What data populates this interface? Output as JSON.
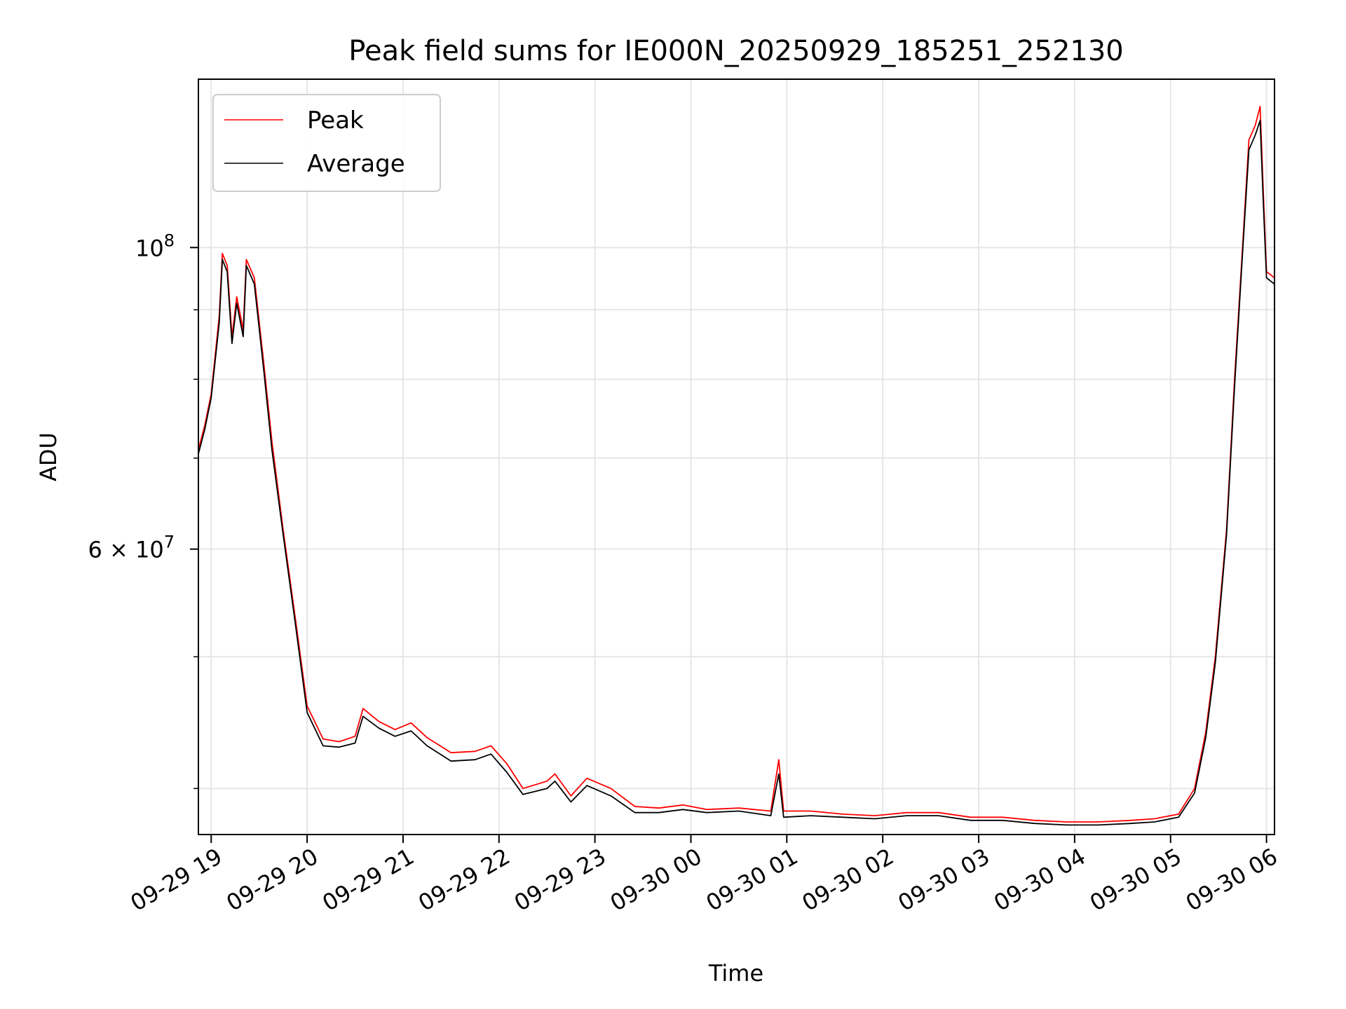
{
  "chart_data": {
    "type": "line",
    "title": "Peak field sums for IE000N_20250929_185251_252130",
    "xlabel": "Time",
    "ylabel": "ADU",
    "y_scale": "log",
    "ylim": [
      37000000,
      133000000
    ],
    "x_range_hours": [
      "2025-09-29 18:52",
      "2025-09-30 06:05"
    ],
    "x_ticks": [
      {
        "label": "09-29 19",
        "t": "2025-09-29 19:00"
      },
      {
        "label": "09-29 20",
        "t": "2025-09-29 20:00"
      },
      {
        "label": "09-29 21",
        "t": "2025-09-29 21:00"
      },
      {
        "label": "09-29 22",
        "t": "2025-09-29 22:00"
      },
      {
        "label": "09-29 23",
        "t": "2025-09-29 23:00"
      },
      {
        "label": "09-30 00",
        "t": "2025-09-30 00:00"
      },
      {
        "label": "09-30 01",
        "t": "2025-09-30 01:00"
      },
      {
        "label": "09-30 02",
        "t": "2025-09-30 02:00"
      },
      {
        "label": "09-30 03",
        "t": "2025-09-30 03:00"
      },
      {
        "label": "09-30 04",
        "t": "2025-09-30 04:00"
      },
      {
        "label": "09-30 05",
        "t": "2025-09-30 05:00"
      },
      {
        "label": "09-30 06",
        "t": "2025-09-30 06:00"
      }
    ],
    "y_major_ticks": [
      {
        "label_base": "10",
        "label_exp": "8",
        "value": 100000000
      },
      {
        "label_base": "6 × 10",
        "label_exp": "7",
        "value": 60000000
      }
    ],
    "y_minor_ticks": [
      40000000,
      50000000,
      70000000,
      80000000,
      90000000
    ],
    "grid": true,
    "legend_position": "upper-left",
    "series": [
      {
        "name": "Peak",
        "color": "#ff0000",
        "points": [
          [
            "2025-09-29 18:52",
            71000000
          ],
          [
            "2025-09-29 18:56",
            74000000
          ],
          [
            "2025-09-29 19:00",
            78000000
          ],
          [
            "2025-09-29 19:05",
            89000000
          ],
          [
            "2025-09-29 19:07",
            99000000
          ],
          [
            "2025-09-29 19:10",
            97000000
          ],
          [
            "2025-09-29 19:13",
            86000000
          ],
          [
            "2025-09-29 19:16",
            92000000
          ],
          [
            "2025-09-29 19:20",
            87000000
          ],
          [
            "2025-09-29 19:22",
            98000000
          ],
          [
            "2025-09-29 19:27",
            95000000
          ],
          [
            "2025-09-29 19:33",
            82000000
          ],
          [
            "2025-09-29 19:38",
            72000000
          ],
          [
            "2025-09-29 19:45",
            62000000
          ],
          [
            "2025-09-29 19:53",
            53000000
          ],
          [
            "2025-09-29 20:00",
            46000000
          ],
          [
            "2025-09-29 20:10",
            43500000
          ],
          [
            "2025-09-29 20:20",
            43300000
          ],
          [
            "2025-09-29 20:30",
            43700000
          ],
          [
            "2025-09-29 20:35",
            45800000
          ],
          [
            "2025-09-29 20:45",
            44800000
          ],
          [
            "2025-09-29 20:55",
            44200000
          ],
          [
            "2025-09-29 21:05",
            44700000
          ],
          [
            "2025-09-29 21:15",
            43600000
          ],
          [
            "2025-09-29 21:30",
            42500000
          ],
          [
            "2025-09-29 21:45",
            42600000
          ],
          [
            "2025-09-29 21:55",
            43000000
          ],
          [
            "2025-09-29 22:05",
            41700000
          ],
          [
            "2025-09-29 22:15",
            40000000
          ],
          [
            "2025-09-29 22:30",
            40500000
          ],
          [
            "2025-09-29 22:35",
            41000000
          ],
          [
            "2025-09-29 22:45",
            39500000
          ],
          [
            "2025-09-29 22:55",
            40700000
          ],
          [
            "2025-09-29 23:10",
            40000000
          ],
          [
            "2025-09-29 23:25",
            38800000
          ],
          [
            "2025-09-29 23:40",
            38700000
          ],
          [
            "2025-09-29 23:55",
            38900000
          ],
          [
            "2025-09-30 00:10",
            38600000
          ],
          [
            "2025-09-30 00:30",
            38700000
          ],
          [
            "2025-09-30 00:50",
            38500000
          ],
          [
            "2025-09-30 00:55",
            42000000
          ],
          [
            "2025-09-30 00:58",
            38500000
          ],
          [
            "2025-09-30 01:15",
            38500000
          ],
          [
            "2025-09-30 01:35",
            38300000
          ],
          [
            "2025-09-30 01:55",
            38200000
          ],
          [
            "2025-09-30 02:15",
            38400000
          ],
          [
            "2025-09-30 02:35",
            38400000
          ],
          [
            "2025-09-30 02:55",
            38100000
          ],
          [
            "2025-09-30 03:15",
            38100000
          ],
          [
            "2025-09-30 03:35",
            37900000
          ],
          [
            "2025-09-30 03:55",
            37800000
          ],
          [
            "2025-09-30 04:15",
            37800000
          ],
          [
            "2025-09-30 04:35",
            37900000
          ],
          [
            "2025-09-30 04:50",
            38000000
          ],
          [
            "2025-09-30 05:05",
            38300000
          ],
          [
            "2025-09-30 05:15",
            40000000
          ],
          [
            "2025-09-30 05:22",
            44000000
          ],
          [
            "2025-09-30 05:28",
            50000000
          ],
          [
            "2025-09-30 05:35",
            62000000
          ],
          [
            "2025-09-30 05:40",
            80000000
          ],
          [
            "2025-09-30 05:45",
            100000000
          ],
          [
            "2025-09-30 05:49",
            120000000
          ],
          [
            "2025-09-30 05:53",
            123000000
          ],
          [
            "2025-09-30 05:56",
            127000000
          ],
          [
            "2025-09-30 05:58",
            110000000
          ],
          [
            "2025-09-30 06:00",
            96000000
          ],
          [
            "2025-09-30 06:05",
            95000000
          ]
        ]
      },
      {
        "name": "Average",
        "color": "#000000",
        "points": [
          [
            "2025-09-29 18:52",
            70500000
          ],
          [
            "2025-09-29 18:56",
            73500000
          ],
          [
            "2025-09-29 19:00",
            77500000
          ],
          [
            "2025-09-29 19:05",
            88000000
          ],
          [
            "2025-09-29 19:07",
            98000000
          ],
          [
            "2025-09-29 19:10",
            96000000
          ],
          [
            "2025-09-29 19:13",
            85000000
          ],
          [
            "2025-09-29 19:16",
            91000000
          ],
          [
            "2025-09-29 19:20",
            86000000
          ],
          [
            "2025-09-29 19:22",
            97000000
          ],
          [
            "2025-09-29 19:27",
            94000000
          ],
          [
            "2025-09-29 19:33",
            81000000
          ],
          [
            "2025-09-29 19:38",
            71000000
          ],
          [
            "2025-09-29 19:45",
            61500000
          ],
          [
            "2025-09-29 19:53",
            52500000
          ],
          [
            "2025-09-29 20:00",
            45500000
          ],
          [
            "2025-09-29 20:10",
            43000000
          ],
          [
            "2025-09-29 20:20",
            42900000
          ],
          [
            "2025-09-29 20:30",
            43200000
          ],
          [
            "2025-09-29 20:35",
            45200000
          ],
          [
            "2025-09-29 20:45",
            44300000
          ],
          [
            "2025-09-29 20:55",
            43700000
          ],
          [
            "2025-09-29 21:05",
            44100000
          ],
          [
            "2025-09-29 21:15",
            43000000
          ],
          [
            "2025-09-29 21:30",
            41900000
          ],
          [
            "2025-09-29 21:45",
            42000000
          ],
          [
            "2025-09-29 21:55",
            42400000
          ],
          [
            "2025-09-29 22:05",
            41100000
          ],
          [
            "2025-09-29 22:15",
            39600000
          ],
          [
            "2025-09-29 22:30",
            40000000
          ],
          [
            "2025-09-29 22:35",
            40500000
          ],
          [
            "2025-09-29 22:45",
            39100000
          ],
          [
            "2025-09-29 22:55",
            40200000
          ],
          [
            "2025-09-29 23:10",
            39500000
          ],
          [
            "2025-09-29 23:25",
            38400000
          ],
          [
            "2025-09-29 23:40",
            38400000
          ],
          [
            "2025-09-29 23:55",
            38600000
          ],
          [
            "2025-09-30 00:10",
            38400000
          ],
          [
            "2025-09-30 00:30",
            38500000
          ],
          [
            "2025-09-30 00:50",
            38200000
          ],
          [
            "2025-09-30 00:55",
            41000000
          ],
          [
            "2025-09-30 00:58",
            38100000
          ],
          [
            "2025-09-30 01:15",
            38200000
          ],
          [
            "2025-09-30 01:35",
            38100000
          ],
          [
            "2025-09-30 01:55",
            38000000
          ],
          [
            "2025-09-30 02:15",
            38200000
          ],
          [
            "2025-09-30 02:35",
            38200000
          ],
          [
            "2025-09-30 02:55",
            37900000
          ],
          [
            "2025-09-30 03:15",
            37900000
          ],
          [
            "2025-09-30 03:35",
            37700000
          ],
          [
            "2025-09-30 03:55",
            37600000
          ],
          [
            "2025-09-30 04:15",
            37600000
          ],
          [
            "2025-09-30 04:35",
            37700000
          ],
          [
            "2025-09-30 04:50",
            37800000
          ],
          [
            "2025-09-30 05:05",
            38100000
          ],
          [
            "2025-09-30 05:15",
            39700000
          ],
          [
            "2025-09-30 05:22",
            43600000
          ],
          [
            "2025-09-30 05:28",
            49500000
          ],
          [
            "2025-09-30 05:35",
            61500000
          ],
          [
            "2025-09-30 05:40",
            79000000
          ],
          [
            "2025-09-30 05:45",
            99000000
          ],
          [
            "2025-09-30 05:49",
            118000000
          ],
          [
            "2025-09-30 05:53",
            121000000
          ],
          [
            "2025-09-30 05:56",
            124000000
          ],
          [
            "2025-09-30 05:58",
            108000000
          ],
          [
            "2025-09-30 06:00",
            95000000
          ],
          [
            "2025-09-30 06:05",
            94000000
          ]
        ]
      }
    ]
  }
}
